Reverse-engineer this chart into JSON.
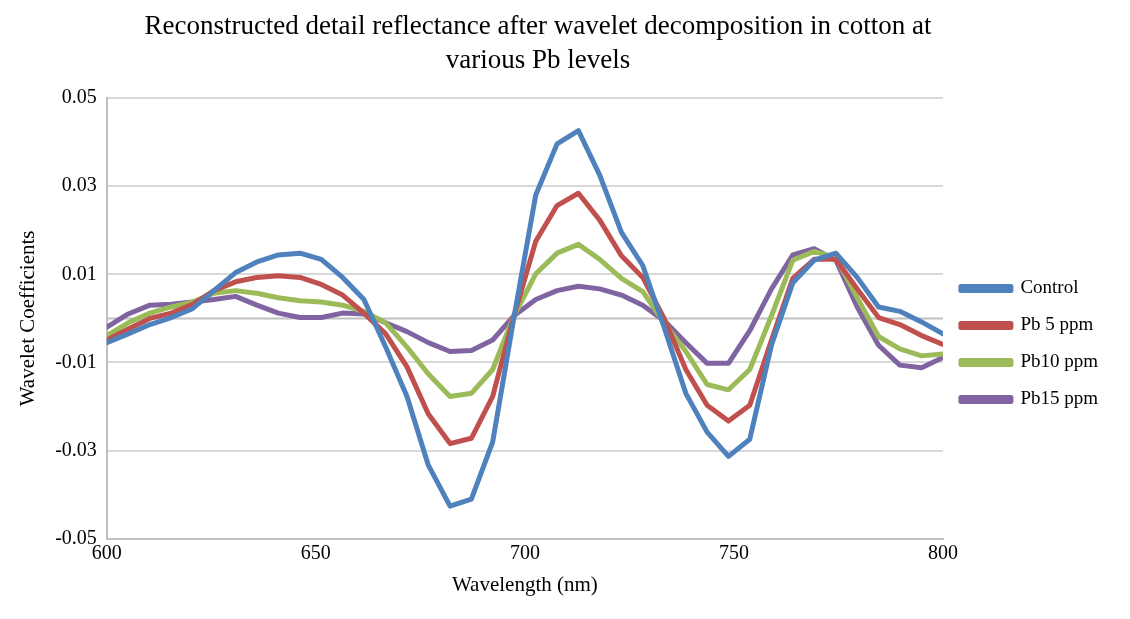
{
  "chart_data": {
    "type": "line",
    "title": "Reconstructed detail reflectance after wavelet decomposition in cotton at various Pb levels",
    "xlabel": "Wavelength (nm)",
    "ylabel": "Wavelet Coefficients",
    "x": [
      600,
      605.1,
      610.3,
      615.4,
      620.5,
      625.6,
      630.8,
      635.9,
      641.0,
      646.2,
      651.3,
      656.4,
      661.5,
      666.7,
      671.8,
      676.9,
      682.1,
      687.2,
      692.3,
      697.4,
      702.6,
      707.7,
      712.8,
      717.9,
      723.1,
      728.2,
      733.3,
      738.5,
      743.6,
      748.7,
      753.8,
      759.0,
      764.1,
      769.2,
      774.4,
      779.5,
      784.6,
      789.7,
      794.9,
      800
    ],
    "series": [
      {
        "name": "Control",
        "color": "#4f81bd",
        "values": [
          -0.0055,
          -0.0035,
          -0.0014,
          0.0002,
          0.0022,
          0.0063,
          0.0104,
          0.0128,
          0.0144,
          0.0148,
          0.0134,
          0.0093,
          0.0043,
          -0.0065,
          -0.0177,
          -0.0333,
          -0.0426,
          -0.041,
          -0.028,
          0.0003,
          0.028,
          0.0396,
          0.0426,
          0.0325,
          0.0195,
          0.012,
          -0.002,
          -0.017,
          -0.0258,
          -0.0313,
          -0.0274,
          -0.006,
          0.0081,
          0.0132,
          0.0148,
          0.0093,
          0.0026,
          0.0016,
          -0.0008,
          -0.0035
        ]
      },
      {
        "name": "Pb 5 ppm",
        "color": "#c0504d",
        "values": [
          -0.0049,
          -0.0024,
          0.0,
          0.0012,
          0.0032,
          0.0063,
          0.0083,
          0.0093,
          0.0097,
          0.0093,
          0.0077,
          0.0053,
          0.0012,
          -0.0035,
          -0.011,
          -0.0217,
          -0.0284,
          -0.0272,
          -0.0177,
          0.0006,
          0.0175,
          0.0256,
          0.0284,
          0.0223,
          0.0142,
          0.0093,
          0.0,
          -0.0116,
          -0.0197,
          -0.0233,
          -0.0197,
          -0.0049,
          0.0091,
          0.0134,
          0.0134,
          0.0067,
          0.0002,
          -0.0014,
          -0.0039,
          -0.0059
        ]
      },
      {
        "name": "Pb10 ppm",
        "color": "#9bbb59",
        "values": [
          -0.0039,
          -0.001,
          0.0012,
          0.0026,
          0.0037,
          0.0057,
          0.0063,
          0.0057,
          0.0047,
          0.004,
          0.0037,
          0.003,
          0.0016,
          -0.001,
          -0.0065,
          -0.0126,
          -0.0177,
          -0.017,
          -0.0116,
          0.0006,
          0.0101,
          0.0148,
          0.0168,
          0.0134,
          0.0091,
          0.0061,
          -0.001,
          -0.0075,
          -0.015,
          -0.0162,
          -0.0116,
          0.0006,
          0.0132,
          0.0152,
          0.0138,
          0.0047,
          -0.0041,
          -0.0069,
          -0.0085,
          -0.0081
        ]
      },
      {
        "name": "Pb15 ppm",
        "color": "#8064a2",
        "values": [
          -0.002,
          0.001,
          0.003,
          0.0032,
          0.0037,
          0.0043,
          0.005,
          0.003,
          0.0012,
          0.0002,
          0.0002,
          0.0012,
          0.001,
          -0.001,
          -0.003,
          -0.0055,
          -0.0075,
          -0.0073,
          -0.0049,
          0.0006,
          0.0043,
          0.0063,
          0.0073,
          0.0067,
          0.0053,
          0.003,
          -0.0005,
          -0.0055,
          -0.0102,
          -0.0102,
          -0.0028,
          0.0067,
          0.0144,
          0.0158,
          0.0132,
          0.0026,
          -0.0061,
          -0.0106,
          -0.0112,
          -0.0089
        ]
      }
    ],
    "xlim": [
      600,
      800
    ],
    "xticks": [
      600,
      650,
      700,
      750,
      800
    ],
    "ylim": [
      -0.05,
      0.05
    ],
    "yticks": [
      -0.05,
      -0.03,
      -0.01,
      0.01,
      0.03,
      0.05
    ],
    "ref_lines": [
      {
        "axis": "y",
        "value": 0,
        "color": "#bfbfbf"
      }
    ],
    "grid": "y",
    "legend": "right",
    "marker": "none",
    "line_style": "solid"
  }
}
